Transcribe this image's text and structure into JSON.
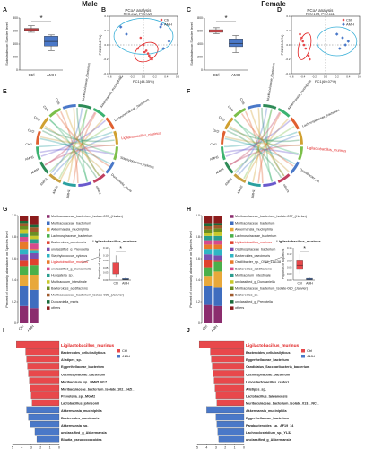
{
  "headers": {
    "male": "Male",
    "female": "Female"
  },
  "panel_letters": [
    "A",
    "B",
    "C",
    "D",
    "E",
    "F",
    "G",
    "H",
    "I",
    "J"
  ],
  "sobs_axis_label": "Sobs index on Species level",
  "sig_star": "*",
  "groups": {
    "ctrl": "Ctrl",
    "amh": "AMH"
  },
  "colors": {
    "ctrl": "#e8484b",
    "amh": "#4a78c8",
    "ellipse_ctrl": "#e02020",
    "ellipse_amh": "#3ab0d8"
  },
  "chart_data": [
    {
      "id": "A",
      "type": "box",
      "ylabel": "Sobs index on Species level",
      "yticks": [
        "0",
        "200",
        "400",
        "600",
        "800"
      ],
      "ylim": [
        0,
        800
      ],
      "categories": [
        "Ctrl",
        "AMH"
      ],
      "boxes": [
        {
          "min": 580,
          "q1": 600,
          "median": 620,
          "q3": 640,
          "max": 680
        },
        {
          "min": 300,
          "q1": 370,
          "median": 440,
          "q3": 520,
          "max": 540
        }
      ]
    },
    {
      "id": "B",
      "type": "scatter",
      "title": "PCoA analysis",
      "stats": "R=0.222, P=0.025",
      "xlabel": "PC1(44.35%)",
      "ylabel": "PC2(23.27%)",
      "xticks": [
        "-0.6",
        "-0.4",
        "-0.2",
        "0.0",
        "0.2",
        "0.4",
        "0.6"
      ],
      "yticks": [
        "-0.4",
        "-0.2",
        "0.0",
        "0.2",
        "0.4"
      ],
      "xlim": [
        -0.6,
        0.6
      ],
      "ylim": [
        -0.4,
        0.4
      ],
      "series": [
        {
          "name": "Ctrl",
          "points": [
            [
              -0.1,
              -0.05
            ],
            [
              0.02,
              -0.1
            ],
            [
              0.05,
              -0.08
            ],
            [
              0.1,
              -0.15
            ],
            [
              -0.05,
              0.1
            ],
            [
              0.08,
              -0.12
            ],
            [
              0.12,
              -0.18
            ],
            [
              0.15,
              -0.2
            ],
            [
              0.0,
              0.0
            ]
          ]
        },
        {
          "name": "AMH",
          "points": [
            [
              -0.4,
              0.25
            ],
            [
              -0.3,
              0.15
            ],
            [
              0.3,
              0.25
            ],
            [
              0.45,
              0.05
            ],
            [
              0.35,
              -0.05
            ]
          ]
        }
      ]
    },
    {
      "id": "C",
      "type": "box",
      "ylabel": "Sobs index on Species level",
      "yticks": [
        "0",
        "200",
        "400",
        "600",
        "800"
      ],
      "ylim": [
        0,
        800
      ],
      "categories": [
        "Ctrl",
        "AMH"
      ],
      "boxes": [
        {
          "min": 560,
          "q1": 580,
          "median": 600,
          "q3": 620,
          "max": 650
        },
        {
          "min": 270,
          "q1": 360,
          "median": 410,
          "q3": 480,
          "max": 530
        }
      ]
    },
    {
      "id": "D",
      "type": "scatter",
      "title": "PCoA analysis",
      "stats": "R=0.159, P=0.111",
      "xlabel": "PC1(69.07%)",
      "ylabel": "PC2(23.02%)",
      "xticks": [
        "-0.6",
        "-0.4",
        "-0.2",
        "0.0",
        "0.2",
        "0.4",
        "0.6"
      ],
      "yticks": [
        "-0.4",
        "-0.2",
        "0.0",
        "0.2",
        "0.4"
      ],
      "xlim": [
        -0.6,
        0.6
      ],
      "ylim": [
        -0.4,
        0.4
      ],
      "series": [
        {
          "name": "Ctrl",
          "points": [
            [
              -0.45,
              0.15
            ],
            [
              -0.4,
              0.05
            ],
            [
              -0.38,
              0.0
            ],
            [
              -0.35,
              -0.05
            ],
            [
              -0.3,
              -0.15
            ],
            [
              -0.28,
              -0.2
            ],
            [
              -0.42,
              0.1
            ]
          ]
        },
        {
          "name": "AMH",
          "points": [
            [
              0.2,
              0.15
            ],
            [
              0.3,
              0.1
            ],
            [
              0.35,
              0.0
            ],
            [
              0.4,
              0.05
            ],
            [
              0.25,
              -0.05
            ]
          ]
        }
      ]
    },
    {
      "id": "E",
      "type": "circos",
      "sample_labels": [
        "AMH1",
        "AMH2",
        "AMH3",
        "AMH4",
        "AMH5",
        "Ctrl1",
        "Ctrl2",
        "Ctrl3",
        "Ctrl4",
        "Ctrl5"
      ],
      "taxa_labels": [
        "Muribaculaceae_bacterium",
        "Akkermansia_muciniphila",
        "Lachnospiraceae_bacterium",
        "Ligilactobacillus_murinus",
        "Staphylococcus_xylosus",
        "Duncaniella_muris",
        "others"
      ],
      "highlight": "Ligilactobacillus_murinus"
    },
    {
      "id": "F",
      "type": "circos",
      "sample_labels": [
        "AMH1",
        "AMH2",
        "AMH3",
        "AMH4",
        "AMH5",
        "Ctrl1",
        "Ctrl2",
        "Ctrl3",
        "Ctrl4",
        "Ctrl5"
      ],
      "taxa_labels": [
        "Muribaculaceae_bacterium",
        "Akkermansia_muciniphila",
        "Lachnospiraceae_bacterium",
        "Ligilactobacillus_murinus",
        "Oscillibacter_sp.",
        "others"
      ],
      "highlight": "Ligilactobacillus_murinus"
    },
    {
      "id": "G",
      "type": "stacked_bar",
      "ylabel": "Percent of community abundance on Species level",
      "yticks": [
        "0",
        "0.2",
        "0.4",
        "0.6",
        "0.8",
        "1.0"
      ],
      "categories": [
        "Ctrl",
        "AMH"
      ],
      "legend": [
        "Muribaculaceae_bacterium_Isolate-037_(Harlan)",
        "Muribaculaceae_bacterium",
        "Akkermansia_muciniphila",
        "Lachnospiraceae_bacterium",
        "Bacteroides_caecimuris",
        "unclassified_g_Prevotella",
        "Staphylococcus_xylosus",
        "Ligilactobacillus_murinus",
        "unclassified_g_Duncaniella",
        "Hungatella_sp.",
        "Muribaculum_intestinale",
        "Bacteroides_acidifaciens",
        "Muribaculaceae_bacterium_Isolate-080_(Janvier)",
        "Duncaniella_muris",
        "others"
      ],
      "legend_colors": [
        "#8b2d6e",
        "#3f6dbf",
        "#e8a83a",
        "#4bb04a",
        "#e0412f",
        "#7a4fb0",
        "#2fb5c4",
        "#e87a2a",
        "#d64b8c",
        "#2a9d8f",
        "#c8c82a",
        "#6b8e23",
        "#a05a2c",
        "#1a6b3a",
        "#8c1c1c"
      ],
      "highlight": "Ligilactobacillus_murinus",
      "series_values": {
        "Ctrl": [
          0.16,
          0.19,
          0.1,
          0.08,
          0.05,
          0.06,
          0.05,
          0.07,
          0.04,
          0.03,
          0.04,
          0.03,
          0.03,
          0.02,
          0.05
        ],
        "AMH": [
          0.14,
          0.17,
          0.14,
          0.09,
          0.06,
          0.05,
          0.03,
          0.01,
          0.05,
          0.04,
          0.03,
          0.04,
          0.04,
          0.03,
          0.08
        ]
      },
      "inset": {
        "title": "Ligilactobacillus_murinus",
        "ylabel": "Proportion of sequences",
        "yticks": [
          "0.00",
          "0.03",
          "0.05",
          "0.08",
          "0.10",
          "0.13"
        ],
        "ylim": [
          0,
          0.13
        ],
        "categories": [
          "Ctrl",
          "AMH"
        ],
        "boxes": [
          {
            "min": 0.01,
            "q1": 0.025,
            "median": 0.045,
            "q3": 0.07,
            "max": 0.1
          },
          {
            "min": 0.0,
            "q1": 0.001,
            "median": 0.003,
            "q3": 0.006,
            "max": 0.01
          }
        ]
      }
    },
    {
      "id": "H",
      "type": "stacked_bar",
      "ylabel": "Percent of community abundance on Species level",
      "yticks": [
        "0",
        "0.2",
        "0.4",
        "0.6",
        "0.8",
        "1.0"
      ],
      "categories": [
        "Ctrl",
        "AMH"
      ],
      "legend": [
        "Muribaculaceae_bacterium_Isolate-037_(Harlan)",
        "Muribaculaceae_bacterium",
        "Akkermansia_muciniphila",
        "Lachnospiraceae_bacterium",
        "Ligilactobacillus_murinus",
        "Oscillospiraceae_bacterium",
        "Bacteroides_caecimuris",
        "Oscillibacter_sp._OSM_111138",
        "Bacteroides_acidifaciens",
        "Muribaculum_intestinale",
        "unclassified_g_Duncaniella",
        "Muribaculaceae_bacterium_Isolate-080_(Janvier)",
        "Bacteroides_sp.",
        "unclassified_g_Prevotella",
        "others"
      ],
      "legend_colors": [
        "#8b2d6e",
        "#3f6dbf",
        "#e8a83a",
        "#4bb04a",
        "#e0412f",
        "#7a4fb0",
        "#2fb5c4",
        "#e87a2a",
        "#d64b8c",
        "#2a9d8f",
        "#c8c82a",
        "#6b8e23",
        "#a05a2c",
        "#1a6b3a",
        "#8c1c1c"
      ],
      "highlight": "Ligilactobacillus_murinus",
      "series_values": {
        "Ctrl": [
          0.17,
          0.18,
          0.09,
          0.08,
          0.07,
          0.05,
          0.05,
          0.04,
          0.04,
          0.04,
          0.03,
          0.03,
          0.03,
          0.03,
          0.07
        ],
        "AMH": [
          0.16,
          0.17,
          0.15,
          0.09,
          0.01,
          0.05,
          0.06,
          0.04,
          0.04,
          0.04,
          0.04,
          0.03,
          0.03,
          0.02,
          0.07
        ]
      },
      "inset": {
        "title": "Ligilactobacillus_murinus",
        "ylabel": "Proportion of sequences",
        "yticks": [
          "0.00",
          "0.03",
          "0.06",
          "0.09",
          "0.12",
          "0.15"
        ],
        "ylim": [
          0,
          0.15
        ],
        "categories": [
          "Ctrl",
          "AMH"
        ],
        "boxes": [
          {
            "min": 0.03,
            "q1": 0.05,
            "median": 0.07,
            "q3": 0.09,
            "max": 0.12
          },
          {
            "min": 0.0,
            "q1": 0.001,
            "median": 0.004,
            "q3": 0.008,
            "max": 0.012
          }
        ]
      }
    },
    {
      "id": "I",
      "type": "bar_horizontal",
      "xticks": [
        "5",
        "4",
        "3",
        "2",
        "1",
        "0"
      ],
      "categories": [
        "Ligilactobacillus_murinus",
        "Bacteroides_cellulosilyticus",
        "Alistipes_sp.",
        "Eggerthellaceae_bacterium",
        "Oscillospiraceae_bacterium",
        "Muribaculum_sp._NM65_B17",
        "Muribaculaceae_bacterium_Isolate_102__HZI_",
        "Prevotella_sp._MGM2",
        "Lactobacillus_johnsonii",
        "Akkermansia_muciniphila",
        "Bacteroides_caecimuris",
        "Akkermansia_sp.",
        "unclassified_g_Akkermansia",
        "Blautia_pseudococcoides"
      ],
      "groups": [
        "Ctrl",
        "Ctrl",
        "Ctrl",
        "Ctrl",
        "Ctrl",
        "Ctrl",
        "Ctrl",
        "Ctrl",
        "Ctrl",
        "AMH",
        "AMH",
        "AMH",
        "AMH",
        "AMH"
      ],
      "values": [
        4.6,
        3.6,
        3.5,
        3.4,
        3.3,
        3.2,
        3.1,
        3.0,
        2.9,
        3.5,
        3.3,
        3.1,
        2.6,
        2.4
      ],
      "highlight": "Ligilactobacillus_murinus",
      "legend": [
        "Ctrl",
        "AMH"
      ]
    },
    {
      "id": "J",
      "type": "bar_horizontal",
      "xticks": [
        "5",
        "4",
        "3",
        "2",
        "1",
        "0"
      ],
      "categories": [
        "Ligilactobacillus_murinus",
        "Bacteroides_cellulosilyticus",
        "Eggerthellaceae_bacterium",
        "Candidatus_Saccharibacteria_bacterium",
        "Oscillospiraceae_bacterium",
        "Limosilactobacillus_reuteri",
        "Alistipes_sp.",
        "Lactobacillus_taiwanensis",
        "Muribaculaceae_bacterium_Isolate_013__NCI_",
        "Akkermansia_muciniphila",
        "Eggerthellaceae_bacterium",
        "Parabacteroides_sp._AF19_14",
        "Lachnoclostridium_sp._YL32",
        "unclassified_g_Akkermansia"
      ],
      "groups": [
        "Ctrl",
        "Ctrl",
        "Ctrl",
        "Ctrl",
        "Ctrl",
        "Ctrl",
        "Ctrl",
        "Ctrl",
        "Ctrl",
        "AMH",
        "AMH",
        "AMH",
        "AMH",
        "AMH"
      ],
      "values": [
        4.8,
        3.6,
        3.5,
        3.4,
        3.3,
        3.2,
        3.1,
        3.0,
        2.9,
        4.0,
        3.0,
        2.9,
        2.8,
        2.7
      ],
      "highlight": "Ligilactobacillus_murinus",
      "legend": [
        "Ctrl",
        "AMH"
      ]
    }
  ]
}
